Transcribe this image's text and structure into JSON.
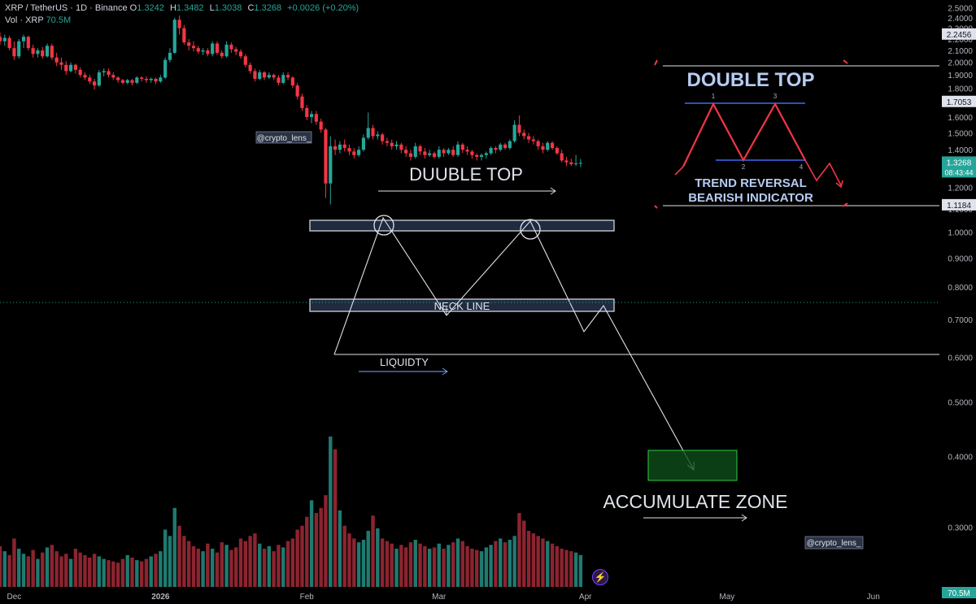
{
  "header": {
    "symbol": "XRP / TetherUS · 1D · Binance",
    "o_label": "O",
    "o": "1.3242",
    "h_label": "H",
    "h": "1.3482",
    "l_label": "L",
    "l": "1.3038",
    "c_label": "C",
    "c": "1.3268",
    "change": "+0.0026 (+0.20%)",
    "vol_label": "Vol · XRP",
    "vol": "70.5M"
  },
  "colors": {
    "up": "#26a69a",
    "down": "#f23645",
    "bg": "#000000",
    "accent_green": "#1e8a3a"
  },
  "chart_data": {
    "type": "candlestick",
    "y_scale": "log",
    "ylim": [
      0.235,
      2.58
    ],
    "y_ticks": [
      "2.5000",
      "2.4000",
      "2.3000",
      "2.2000",
      "2.1000",
      "2.0000",
      "1.9000",
      "1.8000",
      "1.7000",
      "1.6000",
      "1.5000",
      "1.4000",
      "1.2000",
      "1.1000",
      "1.0000",
      "0.9000",
      "0.8000",
      "0.7000",
      "0.6000",
      "0.5000",
      "0.4000",
      "0.3000"
    ],
    "x_ticks": [
      {
        "label": "Dec",
        "date": "2025-12-01"
      },
      {
        "label": "2026",
        "date": "2026-01-01"
      },
      {
        "label": "Feb",
        "date": "2026-02-01"
      },
      {
        "label": "Mar",
        "date": "2026-03-01"
      },
      {
        "label": "Apr",
        "date": "2026-04-01"
      },
      {
        "label": "May",
        "date": "2026-05-01"
      },
      {
        "label": "Jun",
        "date": "2026-06-01"
      }
    ],
    "x_range": [
      "2025-11-28",
      "2026-06-15"
    ],
    "price_tags": [
      {
        "value": 2.2456,
        "label": "2.2456"
      },
      {
        "value": 1.7053,
        "label": "1.7053"
      },
      {
        "value": 1.1184,
        "label": "1.1184"
      }
    ],
    "last_price": {
      "value": 1.3268,
      "label": "1.3268",
      "countdown": "08:43:44"
    },
    "volume_tag": "70.5M",
    "candles": [
      {
        "d": "2025-11-28",
        "o": 2.22,
        "h": 2.26,
        "l": 2.15,
        "c": 2.18
      },
      {
        "d": "2025-11-29",
        "o": 2.18,
        "h": 2.24,
        "l": 2.14,
        "c": 2.21
      },
      {
        "d": "2025-11-30",
        "o": 2.21,
        "h": 2.23,
        "l": 2.1,
        "c": 2.12
      },
      {
        "d": "2025-12-01",
        "o": 2.12,
        "h": 2.18,
        "l": 2.02,
        "c": 2.05
      },
      {
        "d": "2025-12-02",
        "o": 2.05,
        "h": 2.2,
        "l": 2.03,
        "c": 2.18
      },
      {
        "d": "2025-12-03",
        "o": 2.18,
        "h": 2.24,
        "l": 2.12,
        "c": 2.22
      },
      {
        "d": "2025-12-04",
        "o": 2.22,
        "h": 2.23,
        "l": 2.1,
        "c": 2.12
      },
      {
        "d": "2025-12-05",
        "o": 2.12,
        "h": 2.15,
        "l": 2.04,
        "c": 2.07
      },
      {
        "d": "2025-12-06",
        "o": 2.07,
        "h": 2.12,
        "l": 2.04,
        "c": 2.1
      },
      {
        "d": "2025-12-07",
        "o": 2.1,
        "h": 2.13,
        "l": 2.03,
        "c": 2.05
      },
      {
        "d": "2025-12-08",
        "o": 2.05,
        "h": 2.16,
        "l": 2.04,
        "c": 2.14
      },
      {
        "d": "2025-12-09",
        "o": 2.14,
        "h": 2.16,
        "l": 2.02,
        "c": 2.04
      },
      {
        "d": "2025-12-10",
        "o": 2.04,
        "h": 2.08,
        "l": 1.97,
        "c": 2.0
      },
      {
        "d": "2025-12-11",
        "o": 2.0,
        "h": 2.04,
        "l": 1.94,
        "c": 1.98
      },
      {
        "d": "2025-12-12",
        "o": 1.98,
        "h": 2.01,
        "l": 1.9,
        "c": 1.93
      },
      {
        "d": "2025-12-13",
        "o": 1.93,
        "h": 2.0,
        "l": 1.92,
        "c": 1.98
      },
      {
        "d": "2025-12-14",
        "o": 1.98,
        "h": 1.99,
        "l": 1.91,
        "c": 1.94
      },
      {
        "d": "2025-12-15",
        "o": 1.94,
        "h": 1.96,
        "l": 1.88,
        "c": 1.9
      },
      {
        "d": "2025-12-16",
        "o": 1.9,
        "h": 1.92,
        "l": 1.86,
        "c": 1.88
      },
      {
        "d": "2025-12-17",
        "o": 1.88,
        "h": 1.9,
        "l": 1.83,
        "c": 1.85
      },
      {
        "d": "2025-12-18",
        "o": 1.85,
        "h": 1.87,
        "l": 1.79,
        "c": 1.82
      },
      {
        "d": "2025-12-19",
        "o": 1.82,
        "h": 1.94,
        "l": 1.81,
        "c": 1.92
      },
      {
        "d": "2025-12-20",
        "o": 1.92,
        "h": 1.95,
        "l": 1.89,
        "c": 1.93
      },
      {
        "d": "2025-12-21",
        "o": 1.93,
        "h": 1.95,
        "l": 1.88,
        "c": 1.9
      },
      {
        "d": "2025-12-22",
        "o": 1.9,
        "h": 1.92,
        "l": 1.86,
        "c": 1.88
      },
      {
        "d": "2025-12-23",
        "o": 1.88,
        "h": 1.89,
        "l": 1.84,
        "c": 1.86
      },
      {
        "d": "2025-12-24",
        "o": 1.86,
        "h": 1.87,
        "l": 1.83,
        "c": 1.84
      },
      {
        "d": "2025-12-25",
        "o": 1.84,
        "h": 1.87,
        "l": 1.83,
        "c": 1.86
      },
      {
        "d": "2025-12-26",
        "o": 1.86,
        "h": 1.87,
        "l": 1.82,
        "c": 1.84
      },
      {
        "d": "2025-12-27",
        "o": 1.84,
        "h": 1.89,
        "l": 1.83,
        "c": 1.88
      },
      {
        "d": "2025-12-28",
        "o": 1.88,
        "h": 1.89,
        "l": 1.85,
        "c": 1.87
      },
      {
        "d": "2025-12-29",
        "o": 1.87,
        "h": 1.89,
        "l": 1.84,
        "c": 1.86
      },
      {
        "d": "2025-12-30",
        "o": 1.86,
        "h": 1.88,
        "l": 1.84,
        "c": 1.87
      },
      {
        "d": "2025-12-31",
        "o": 1.87,
        "h": 1.88,
        "l": 1.83,
        "c": 1.85
      },
      {
        "d": "2026-01-01",
        "o": 1.85,
        "h": 1.9,
        "l": 1.84,
        "c": 1.88
      },
      {
        "d": "2026-01-02",
        "o": 1.88,
        "h": 2.04,
        "l": 1.87,
        "c": 2.02
      },
      {
        "d": "2026-01-03",
        "o": 2.02,
        "h": 2.12,
        "l": 2.0,
        "c": 2.08
      },
      {
        "d": "2026-01-04",
        "o": 2.08,
        "h": 2.4,
        "l": 2.07,
        "c": 2.38
      },
      {
        "d": "2026-01-05",
        "o": 2.38,
        "h": 2.42,
        "l": 2.24,
        "c": 2.3
      },
      {
        "d": "2026-01-06",
        "o": 2.3,
        "h": 2.33,
        "l": 2.15,
        "c": 2.17
      },
      {
        "d": "2026-01-07",
        "o": 2.17,
        "h": 2.2,
        "l": 2.1,
        "c": 2.14
      },
      {
        "d": "2026-01-08",
        "o": 2.14,
        "h": 2.18,
        "l": 2.09,
        "c": 2.12
      },
      {
        "d": "2026-01-09",
        "o": 2.12,
        "h": 2.14,
        "l": 2.07,
        "c": 2.09
      },
      {
        "d": "2026-01-10",
        "o": 2.09,
        "h": 2.12,
        "l": 2.06,
        "c": 2.1
      },
      {
        "d": "2026-01-11",
        "o": 2.1,
        "h": 2.12,
        "l": 2.05,
        "c": 2.07
      },
      {
        "d": "2026-01-12",
        "o": 2.07,
        "h": 2.18,
        "l": 2.05,
        "c": 2.16
      },
      {
        "d": "2026-01-13",
        "o": 2.16,
        "h": 2.18,
        "l": 2.06,
        "c": 2.08
      },
      {
        "d": "2026-01-14",
        "o": 2.08,
        "h": 2.1,
        "l": 2.03,
        "c": 2.05
      },
      {
        "d": "2026-01-15",
        "o": 2.05,
        "h": 2.18,
        "l": 2.04,
        "c": 2.15
      },
      {
        "d": "2026-01-16",
        "o": 2.15,
        "h": 2.17,
        "l": 2.08,
        "c": 2.11
      },
      {
        "d": "2026-01-17",
        "o": 2.11,
        "h": 2.13,
        "l": 2.06,
        "c": 2.09
      },
      {
        "d": "2026-01-18",
        "o": 2.09,
        "h": 2.11,
        "l": 2.03,
        "c": 2.05
      },
      {
        "d": "2026-01-19",
        "o": 2.05,
        "h": 2.07,
        "l": 1.96,
        "c": 1.98
      },
      {
        "d": "2026-01-20",
        "o": 1.98,
        "h": 2.0,
        "l": 1.91,
        "c": 1.93
      },
      {
        "d": "2026-01-21",
        "o": 1.93,
        "h": 1.95,
        "l": 1.85,
        "c": 1.87
      },
      {
        "d": "2026-01-22",
        "o": 1.87,
        "h": 1.94,
        "l": 1.86,
        "c": 1.92
      },
      {
        "d": "2026-01-23",
        "o": 1.92,
        "h": 1.93,
        "l": 1.86,
        "c": 1.88
      },
      {
        "d": "2026-01-24",
        "o": 1.88,
        "h": 1.92,
        "l": 1.87,
        "c": 1.9
      },
      {
        "d": "2026-01-25",
        "o": 1.9,
        "h": 1.91,
        "l": 1.86,
        "c": 1.88
      },
      {
        "d": "2026-01-26",
        "o": 1.88,
        "h": 1.9,
        "l": 1.82,
        "c": 1.84
      },
      {
        "d": "2026-01-27",
        "o": 1.84,
        "h": 1.92,
        "l": 1.83,
        "c": 1.9
      },
      {
        "d": "2026-01-28",
        "o": 1.9,
        "h": 1.92,
        "l": 1.86,
        "c": 1.88
      },
      {
        "d": "2026-01-29",
        "o": 1.88,
        "h": 1.89,
        "l": 1.8,
        "c": 1.82
      },
      {
        "d": "2026-01-30",
        "o": 1.82,
        "h": 1.84,
        "l": 1.72,
        "c": 1.74
      },
      {
        "d": "2026-01-31",
        "o": 1.74,
        "h": 1.76,
        "l": 1.64,
        "c": 1.66
      },
      {
        "d": "2026-02-01",
        "o": 1.66,
        "h": 1.68,
        "l": 1.58,
        "c": 1.6
      },
      {
        "d": "2026-02-02",
        "o": 1.6,
        "h": 1.64,
        "l": 1.56,
        "c": 1.62
      },
      {
        "d": "2026-02-03",
        "o": 1.62,
        "h": 1.64,
        "l": 1.55,
        "c": 1.57
      },
      {
        "d": "2026-02-04",
        "o": 1.57,
        "h": 1.59,
        "l": 1.5,
        "c": 1.52
      },
      {
        "d": "2026-02-05",
        "o": 1.52,
        "h": 1.53,
        "l": 1.15,
        "c": 1.22
      },
      {
        "d": "2026-02-06",
        "o": 1.22,
        "h": 1.48,
        "l": 1.12,
        "c": 1.42
      },
      {
        "d": "2026-02-07",
        "o": 1.42,
        "h": 1.46,
        "l": 1.37,
        "c": 1.4
      },
      {
        "d": "2026-02-08",
        "o": 1.4,
        "h": 1.45,
        "l": 1.38,
        "c": 1.43
      },
      {
        "d": "2026-02-09",
        "o": 1.43,
        "h": 1.46,
        "l": 1.39,
        "c": 1.41
      },
      {
        "d": "2026-02-10",
        "o": 1.41,
        "h": 1.43,
        "l": 1.37,
        "c": 1.39
      },
      {
        "d": "2026-02-11",
        "o": 1.39,
        "h": 1.41,
        "l": 1.35,
        "c": 1.37
      },
      {
        "d": "2026-02-12",
        "o": 1.37,
        "h": 1.42,
        "l": 1.36,
        "c": 1.4
      },
      {
        "d": "2026-02-13",
        "o": 1.4,
        "h": 1.49,
        "l": 1.39,
        "c": 1.47
      },
      {
        "d": "2026-02-14",
        "o": 1.47,
        "h": 1.63,
        "l": 1.46,
        "c": 1.53
      },
      {
        "d": "2026-02-15",
        "o": 1.53,
        "h": 1.55,
        "l": 1.46,
        "c": 1.48
      },
      {
        "d": "2026-02-16",
        "o": 1.48,
        "h": 1.51,
        "l": 1.46,
        "c": 1.49
      },
      {
        "d": "2026-02-17",
        "o": 1.49,
        "h": 1.5,
        "l": 1.43,
        "c": 1.45
      },
      {
        "d": "2026-02-18",
        "o": 1.45,
        "h": 1.47,
        "l": 1.42,
        "c": 1.44
      },
      {
        "d": "2026-02-19",
        "o": 1.44,
        "h": 1.46,
        "l": 1.4,
        "c": 1.42
      },
      {
        "d": "2026-02-20",
        "o": 1.42,
        "h": 1.45,
        "l": 1.4,
        "c": 1.43
      },
      {
        "d": "2026-02-21",
        "o": 1.43,
        "h": 1.44,
        "l": 1.38,
        "c": 1.4
      },
      {
        "d": "2026-02-22",
        "o": 1.4,
        "h": 1.42,
        "l": 1.36,
        "c": 1.38
      },
      {
        "d": "2026-02-23",
        "o": 1.38,
        "h": 1.4,
        "l": 1.34,
        "c": 1.36
      },
      {
        "d": "2026-02-24",
        "o": 1.36,
        "h": 1.44,
        "l": 1.35,
        "c": 1.42
      },
      {
        "d": "2026-02-25",
        "o": 1.42,
        "h": 1.43,
        "l": 1.37,
        "c": 1.39
      },
      {
        "d": "2026-02-26",
        "o": 1.39,
        "h": 1.41,
        "l": 1.35,
        "c": 1.37
      },
      {
        "d": "2026-02-27",
        "o": 1.37,
        "h": 1.4,
        "l": 1.36,
        "c": 1.38
      },
      {
        "d": "2026-02-28",
        "o": 1.38,
        "h": 1.39,
        "l": 1.35,
        "c": 1.36
      },
      {
        "d": "2026-03-01",
        "o": 1.36,
        "h": 1.42,
        "l": 1.35,
        "c": 1.4
      },
      {
        "d": "2026-03-02",
        "o": 1.4,
        "h": 1.41,
        "l": 1.36,
        "c": 1.38
      },
      {
        "d": "2026-03-03",
        "o": 1.38,
        "h": 1.41,
        "l": 1.37,
        "c": 1.4
      },
      {
        "d": "2026-03-04",
        "o": 1.4,
        "h": 1.42,
        "l": 1.36,
        "c": 1.37
      },
      {
        "d": "2026-03-05",
        "o": 1.37,
        "h": 1.45,
        "l": 1.36,
        "c": 1.43
      },
      {
        "d": "2026-03-06",
        "o": 1.43,
        "h": 1.44,
        "l": 1.38,
        "c": 1.4
      },
      {
        "d": "2026-03-07",
        "o": 1.4,
        "h": 1.42,
        "l": 1.37,
        "c": 1.39
      },
      {
        "d": "2026-03-08",
        "o": 1.39,
        "h": 1.4,
        "l": 1.35,
        "c": 1.37
      },
      {
        "d": "2026-03-09",
        "o": 1.37,
        "h": 1.38,
        "l": 1.34,
        "c": 1.36
      },
      {
        "d": "2026-03-10",
        "o": 1.36,
        "h": 1.38,
        "l": 1.34,
        "c": 1.37
      },
      {
        "d": "2026-03-11",
        "o": 1.37,
        "h": 1.39,
        "l": 1.35,
        "c": 1.38
      },
      {
        "d": "2026-03-12",
        "o": 1.38,
        "h": 1.42,
        "l": 1.37,
        "c": 1.41
      },
      {
        "d": "2026-03-13",
        "o": 1.41,
        "h": 1.42,
        "l": 1.38,
        "c": 1.4
      },
      {
        "d": "2026-03-14",
        "o": 1.4,
        "h": 1.44,
        "l": 1.39,
        "c": 1.43
      },
      {
        "d": "2026-03-15",
        "o": 1.43,
        "h": 1.44,
        "l": 1.4,
        "c": 1.41
      },
      {
        "d": "2026-03-16",
        "o": 1.41,
        "h": 1.46,
        "l": 1.4,
        "c": 1.45
      },
      {
        "d": "2026-03-17",
        "o": 1.45,
        "h": 1.58,
        "l": 1.44,
        "c": 1.55
      },
      {
        "d": "2026-03-18",
        "o": 1.55,
        "h": 1.61,
        "l": 1.48,
        "c": 1.5
      },
      {
        "d": "2026-03-19",
        "o": 1.5,
        "h": 1.52,
        "l": 1.46,
        "c": 1.48
      },
      {
        "d": "2026-03-20",
        "o": 1.48,
        "h": 1.5,
        "l": 1.44,
        "c": 1.46
      },
      {
        "d": "2026-03-21",
        "o": 1.46,
        "h": 1.48,
        "l": 1.43,
        "c": 1.45
      },
      {
        "d": "2026-03-22",
        "o": 1.45,
        "h": 1.46,
        "l": 1.4,
        "c": 1.42
      },
      {
        "d": "2026-03-23",
        "o": 1.42,
        "h": 1.44,
        "l": 1.38,
        "c": 1.4
      },
      {
        "d": "2026-03-24",
        "o": 1.4,
        "h": 1.45,
        "l": 1.39,
        "c": 1.44
      },
      {
        "d": "2026-03-25",
        "o": 1.44,
        "h": 1.45,
        "l": 1.4,
        "c": 1.41
      },
      {
        "d": "2026-03-26",
        "o": 1.41,
        "h": 1.42,
        "l": 1.37,
        "c": 1.38
      },
      {
        "d": "2026-03-27",
        "o": 1.38,
        "h": 1.4,
        "l": 1.33,
        "c": 1.34
      },
      {
        "d": "2026-03-28",
        "o": 1.34,
        "h": 1.36,
        "l": 1.31,
        "c": 1.33
      },
      {
        "d": "2026-03-29",
        "o": 1.33,
        "h": 1.35,
        "l": 1.31,
        "c": 1.32
      },
      {
        "d": "2026-03-30",
        "o": 1.32,
        "h": 1.37,
        "l": 1.31,
        "c": 1.3242
      },
      {
        "d": "2026-03-31",
        "o": 1.3242,
        "h": 1.3482,
        "l": 1.3038,
        "c": 1.3268
      }
    ],
    "volume": [
      32,
      28,
      25,
      38,
      30,
      26,
      24,
      29,
      22,
      27,
      31,
      33,
      28,
      24,
      26,
      22,
      30,
      27,
      25,
      23,
      26,
      24,
      22,
      21,
      20,
      19,
      22,
      25,
      23,
      21,
      20,
      22,
      24,
      26,
      28,
      45,
      40,
      62,
      48,
      40,
      36,
      32,
      30,
      28,
      34,
      30,
      27,
      35,
      33,
      29,
      31,
      38,
      36,
      40,
      42,
      34,
      30,
      32,
      28,
      33,
      31,
      36,
      38,
      45,
      48,
      55,
      68,
      58,
      62,
      72,
      118,
      108,
      60,
      48,
      42,
      38,
      35,
      37,
      44,
      56,
      46,
      38,
      36,
      34,
      30,
      33,
      31,
      35,
      37,
      34,
      32,
      30,
      31,
      34,
      30,
      33,
      35,
      38,
      36,
      32,
      30,
      29,
      28,
      31,
      33,
      36,
      38,
      35,
      37,
      40,
      58,
      52,
      44,
      42,
      40,
      38,
      36,
      34,
      32,
      30,
      29,
      28,
      27,
      25
    ]
  },
  "annotations": {
    "watermark_top": "@crypto_lens_",
    "watermark_bottom": "@crypto_lens_",
    "duuble_top": "DUUBLE TOP",
    "neck_line": "NECK LINE",
    "liquidity": "LIQUIDTY",
    "accumulate_zone": "ACCUMULATE ZONE",
    "inset_title": "DOUBLE TOP",
    "inset_line1": "TREND REVERSAL",
    "inset_line2": "BEARISH INDICATOR",
    "inset_n1": "1",
    "inset_n2": "2",
    "inset_n3": "3",
    "inset_n4": "4"
  }
}
